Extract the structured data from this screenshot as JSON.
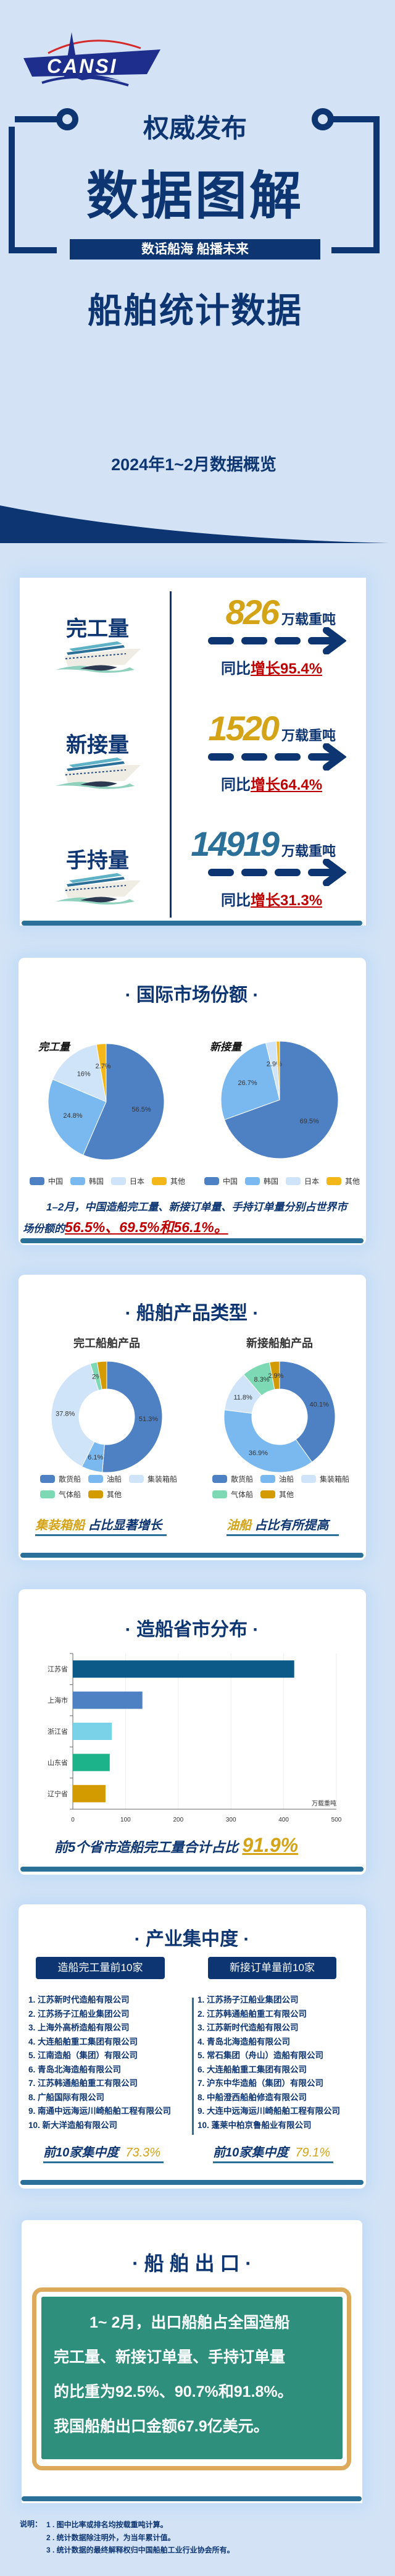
{
  "header": {
    "logo_text": "CANSI",
    "kicker": "权威发布",
    "title": "数据图解",
    "banner": "数话船海 船播未来",
    "subtitle": "船舶统计数据",
    "period": "2024年1~2月数据概览"
  },
  "overview": {
    "rows": [
      {
        "label": "完工量",
        "value": "826",
        "unit": "万载重吨",
        "yoy_prefix": "同比",
        "yoy": "增长95.4%",
        "color": "#d4a316"
      },
      {
        "label": "新接量",
        "value": "1520",
        "unit": "万载重吨",
        "yoy_prefix": "同比",
        "yoy": "增长64.4%",
        "color": "#d4a316"
      },
      {
        "label": "手持量",
        "value": "14919",
        "unit": "万载重吨",
        "yoy_prefix": "同比",
        "yoy": "增长31.3%",
        "color": "#2a7098"
      }
    ]
  },
  "market": {
    "title": "· 国际市场份额 ·",
    "caption_text": "1–2月，中国造船完工量、新接订单量、手持订单量分别占世界市场份额的",
    "caption_highlight": "56.5%、69.5%和56.1%。"
  },
  "products": {
    "title": "· 船舶产品类型 ·",
    "left_note_hl": "集装箱船",
    "left_note": " 占比显著增长",
    "right_note_hl": "油船",
    "right_note": " 占比有所提高"
  },
  "provinces": {
    "title": "· 造船省市分布 ·",
    "footer_text": "前5个省市造船完工量合计占比",
    "footer_value": "91.9%"
  },
  "concentration": {
    "title": "· 产业集中度 ·",
    "left": {
      "heading": "造船完工量前10家",
      "items": [
        "1. 江苏新时代造船有限公司",
        "2. 江苏扬子江船业集团公司",
        "3. 上海外高桥造船有限公司",
        "4. 大连船舶重工集团有限公司",
        "5. 江南造船（集团）有限公司",
        "6. 青岛北海造船有限公司",
        "7. 江苏韩通船舶重工有限公司",
        "8. 广船国际有限公司",
        "9. 南通中远海运川崎船舶工程有限公司",
        "10. 新大洋造船有限公司"
      ],
      "footer_label": "前10家集中度",
      "footer_value": "73.3%"
    },
    "right": {
      "heading": "新接订单量前10家",
      "items": [
        "1. 江苏扬子江船业集团公司",
        "2. 江苏韩通船舶重工有限公司",
        "3. 江苏新时代造船有限公司",
        "4. 青岛北海造船有限公司",
        "5. 常石集团（舟山）造船有限公司",
        "6. 大连船舶重工集团有限公司",
        "7. 沪东中华造船（集团）有限公司",
        "8. 中船澄西船舶修造有限公司",
        "9. 大连中远海运川崎船舶工程有限公司",
        "10. 蓬莱中柏京鲁船业有限公司"
      ],
      "footer_label": "前10家集中度",
      "footer_value": "79.1%"
    }
  },
  "export": {
    "title": "· 船 舶 出 口 ·",
    "lines": [
      "1~ 2月，出口船舶占全国造船",
      "完工量、新接订单量、手持订单量",
      "的比重为92.5%、90.7%和91.8%。",
      "我国船舶出口金额67.9亿美元。"
    ]
  },
  "notes": {
    "label": "说明：",
    "items": [
      "1 . 图中比率或排名均按载重吨计算。",
      "2 . 统计数据除注明外，为当年累计值。",
      "3 . 统计数据的最终解释权归中国船舶工业行业协会所有。"
    ]
  },
  "chart_data": [
    {
      "type": "pie",
      "title": "完工量",
      "categories": [
        "中国",
        "韩国",
        "日本",
        "其他"
      ],
      "values": [
        56.5,
        24.8,
        16,
        2.7
      ],
      "labels": [
        "56.5%",
        "24.8%",
        "16%",
        "2.7%"
      ],
      "colors": [
        "#4e81c4",
        "#7ab8f0",
        "#cfe4f8",
        "#f3b71a"
      ],
      "legend": "bottom"
    },
    {
      "type": "pie",
      "title": "新接量",
      "categories": [
        "中国",
        "韩国",
        "日本",
        "其他"
      ],
      "values": [
        69.5,
        26.7,
        2.9,
        0.9
      ],
      "labels": [
        "69.5%",
        "26.7%",
        "2.9%",
        ""
      ],
      "colors": [
        "#4e81c4",
        "#7ab8f0",
        "#cfe4f8",
        "#f3b71a"
      ],
      "legend": "bottom"
    },
    {
      "type": "pie",
      "subtype": "donut",
      "title": "完工船舶产品",
      "categories": [
        "散货船",
        "油船",
        "集装箱船",
        "气体船",
        "其他"
      ],
      "values": [
        51.3,
        6.1,
        37.8,
        2,
        2.8
      ],
      "labels": [
        "51.3%",
        "6.1%",
        "37.8%",
        "2%",
        ""
      ],
      "colors": [
        "#4e81c4",
        "#7ab8f0",
        "#cfe4f8",
        "#7dd9b3",
        "#d49b00"
      ],
      "legend": "bottom"
    },
    {
      "type": "pie",
      "subtype": "donut",
      "title": "新接船舶产品",
      "categories": [
        "散货船",
        "油船",
        "集装箱船",
        "气体船",
        "其他"
      ],
      "values": [
        40.1,
        36.9,
        11.8,
        8.3,
        2.9
      ],
      "labels": [
        "40.1%",
        "36.9%",
        "11.8%",
        "8.3%",
        "2.9%"
      ],
      "colors": [
        "#4e81c4",
        "#7ab8f0",
        "#cfe4f8",
        "#7dd9b3",
        "#d49b00"
      ],
      "legend": "bottom"
    },
    {
      "type": "bar",
      "orientation": "horizontal",
      "categories": [
        "江苏省",
        "上海市",
        "浙江省",
        "山东省",
        "辽宁省"
      ],
      "values": [
        420,
        132,
        74,
        70,
        62
      ],
      "colors": [
        "#0b5a87",
        "#4e81c4",
        "#79d2e8",
        "#1db38a",
        "#d49b00"
      ],
      "xlabel": "万载重吨",
      "xlim": [
        0,
        500
      ],
      "xticks": [
        "0",
        "100",
        "200",
        "300",
        "400",
        "500"
      ],
      "grid": true
    }
  ]
}
